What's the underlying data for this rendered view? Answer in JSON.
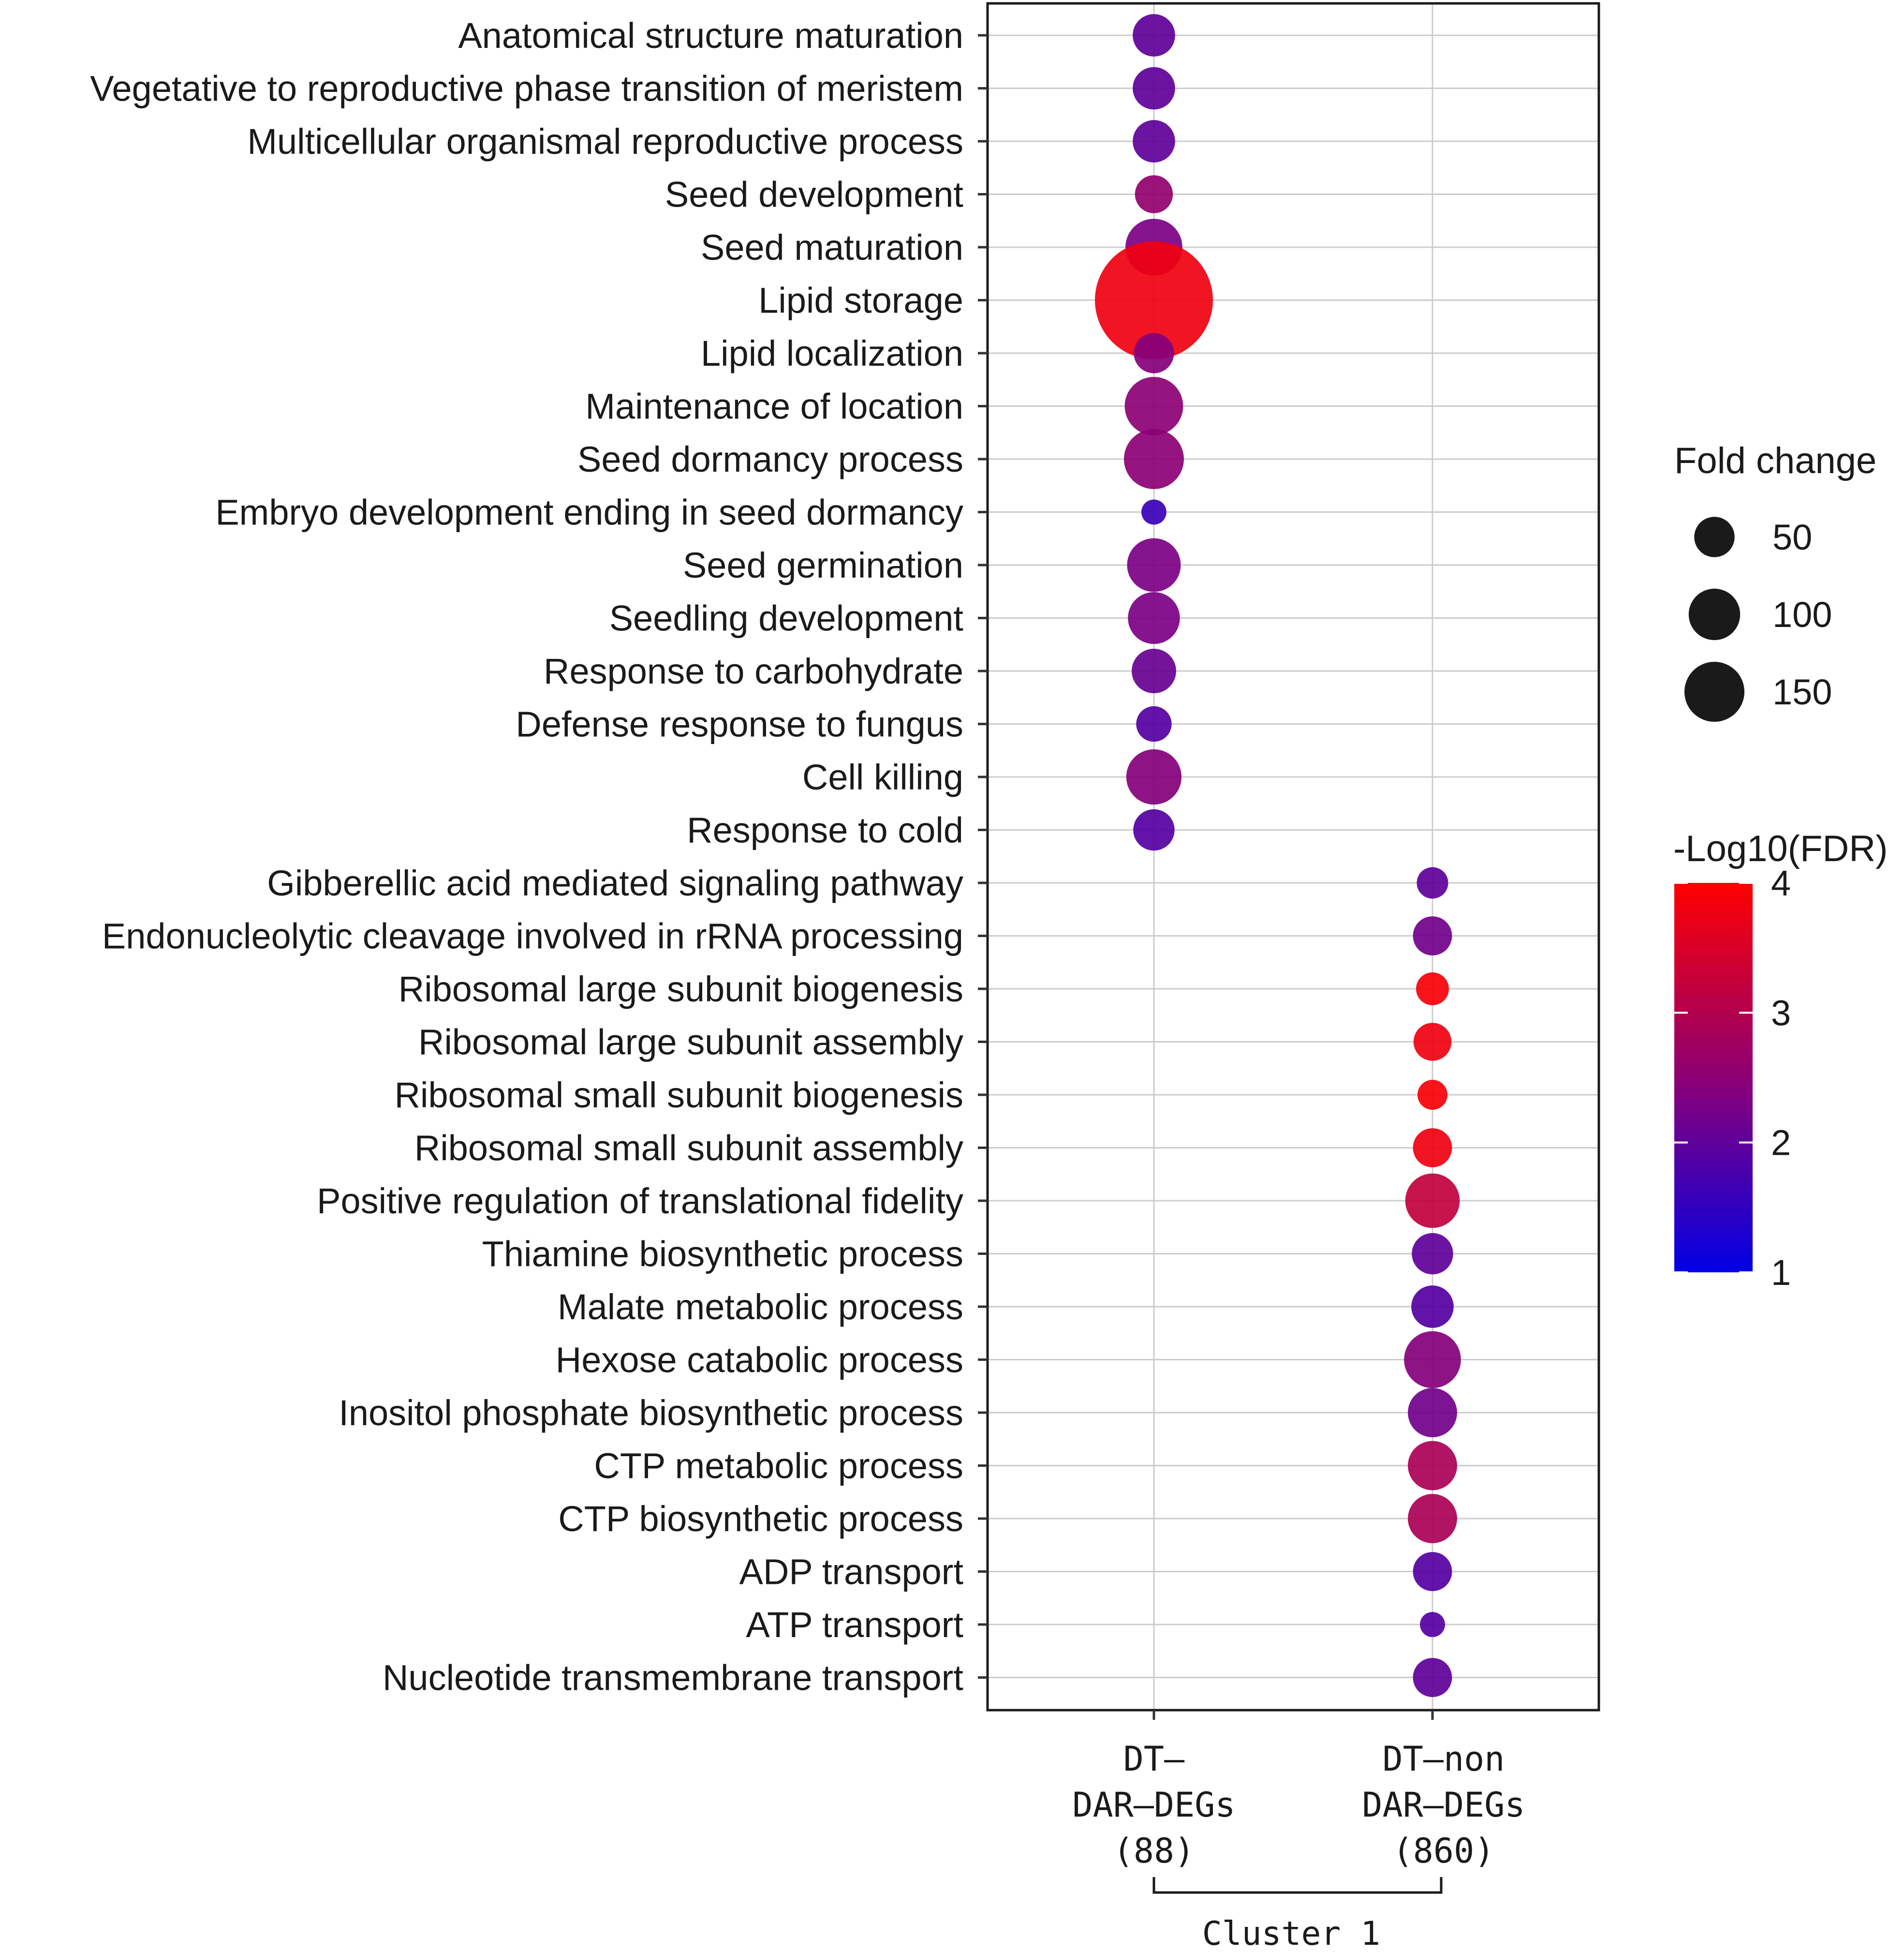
{
  "chart_data": {
    "type": "bubble",
    "columns": [
      "DT-DAR-DEGs (88)",
      "DT-non DAR-DEGs (860)"
    ],
    "column_label_lines": [
      [
        "DT–",
        "DAR–DEGs",
        "(88)"
      ],
      [
        "DT–non",
        "DAR–DEGs",
        "(860)"
      ]
    ],
    "column_group": "Cluster 1",
    "categories": [
      "Anatomical structure maturation",
      "Vegetative to reproductive phase transition of meristem",
      "Multicellular organismal reproductive process",
      "Seed development",
      "Seed maturation",
      "Lipid storage",
      "Lipid localization",
      "Maintenance of location",
      "Seed dormancy process",
      "Embryo development ending in seed dormancy",
      "Seed germination",
      "Seedling development",
      "Response to carbohydrate",
      "Defense response to fungus",
      "Cell killing",
      "Response to cold",
      "Gibberellic acid mediated signaling pathway",
      "Endonucleolytic cleavage involved in rRNA processing",
      "Ribosomal large subunit biogenesis",
      "Ribosomal large subunit assembly",
      "Ribosomal small subunit biogenesis",
      "Ribosomal small subunit assembly",
      "Positive regulation of translational fidelity",
      "Thiamine biosynthetic process",
      "Malate metabolic process",
      "Hexose catabolic process",
      "Inositol phosphate biosynthetic process",
      "CTP metabolic process",
      "CTP biosynthetic process",
      "ADP transport",
      "ATP transport",
      "Nucleotide transmembrane transport"
    ],
    "points": [
      {
        "category": "Anatomical structure maturation",
        "column": 0,
        "fold_change": 20,
        "neg_log10_fdr": 2.0
      },
      {
        "category": "Vegetative to reproductive phase transition of meristem",
        "column": 0,
        "fold_change": 20,
        "neg_log10_fdr": 2.0
      },
      {
        "category": "Multicellular organismal reproductive process",
        "column": 0,
        "fold_change": 20,
        "neg_log10_fdr": 2.0
      },
      {
        "category": "Seed development",
        "column": 0,
        "fold_change": 16,
        "neg_log10_fdr": 2.6
      },
      {
        "category": "Seed maturation",
        "column": 0,
        "fold_change": 36,
        "neg_log10_fdr": 2.3
      },
      {
        "category": "Lipid storage",
        "column": 0,
        "fold_change": 155,
        "neg_log10_fdr": 3.8
      },
      {
        "category": "Lipid localization",
        "column": 0,
        "fold_change": 18,
        "neg_log10_fdr": 2.4
      },
      {
        "category": "Maintenance of location",
        "column": 0,
        "fold_change": 38,
        "neg_log10_fdr": 2.5
      },
      {
        "category": "Seed dormancy process",
        "column": 0,
        "fold_change": 40,
        "neg_log10_fdr": 2.5
      },
      {
        "category": "Embryo development ending in seed dormancy",
        "column": 0,
        "fold_change": 7,
        "neg_log10_fdr": 1.6
      },
      {
        "category": "Seed germination",
        "column": 0,
        "fold_change": 32,
        "neg_log10_fdr": 2.3
      },
      {
        "category": "Seedling development",
        "column": 0,
        "fold_change": 30,
        "neg_log10_fdr": 2.3
      },
      {
        "category": "Response to carbohydrate",
        "column": 0,
        "fold_change": 22,
        "neg_log10_fdr": 2.1
      },
      {
        "category": "Defense response to fungus",
        "column": 0,
        "fold_change": 14,
        "neg_log10_fdr": 1.9
      },
      {
        "category": "Cell killing",
        "column": 0,
        "fold_change": 34,
        "neg_log10_fdr": 2.4
      },
      {
        "category": "Response to cold",
        "column": 0,
        "fold_change": 19,
        "neg_log10_fdr": 1.9
      },
      {
        "category": "Gibberellic acid mediated signaling pathway",
        "column": 1,
        "fold_change": 11,
        "neg_log10_fdr": 2.0
      },
      {
        "category": "Endonucleolytic cleavage involved in rRNA processing",
        "column": 1,
        "fold_change": 17,
        "neg_log10_fdr": 2.2
      },
      {
        "category": "Ribosomal large subunit biogenesis",
        "column": 1,
        "fold_change": 12,
        "neg_log10_fdr": 3.9
      },
      {
        "category": "Ribosomal large subunit assembly",
        "column": 1,
        "fold_change": 16,
        "neg_log10_fdr": 3.8
      },
      {
        "category": "Ribosomal small subunit biogenesis",
        "column": 1,
        "fold_change": 10,
        "neg_log10_fdr": 3.9
      },
      {
        "category": "Ribosomal small subunit assembly",
        "column": 1,
        "fold_change": 17,
        "neg_log10_fdr": 3.8
      },
      {
        "category": "Positive regulation of translational fidelity",
        "column": 1,
        "fold_change": 33,
        "neg_log10_fdr": 3.2
      },
      {
        "category": "Thiamine biosynthetic process",
        "column": 1,
        "fold_change": 19,
        "neg_log10_fdr": 2.0
      },
      {
        "category": "Malate metabolic process",
        "column": 1,
        "fold_change": 20,
        "neg_log10_fdr": 1.9
      },
      {
        "category": "Hexose catabolic process",
        "column": 1,
        "fold_change": 36,
        "neg_log10_fdr": 2.4
      },
      {
        "category": "Inositol phosphate biosynthetic process",
        "column": 1,
        "fold_change": 27,
        "neg_log10_fdr": 2.2
      },
      {
        "category": "CTP metabolic process",
        "column": 1,
        "fold_change": 27,
        "neg_log10_fdr": 2.9
      },
      {
        "category": "CTP biosynthetic process",
        "column": 1,
        "fold_change": 27,
        "neg_log10_fdr": 2.9
      },
      {
        "category": "ADP transport",
        "column": 1,
        "fold_change": 17,
        "neg_log10_fdr": 1.9
      },
      {
        "category": "ATP transport",
        "column": 1,
        "fold_change": 7,
        "neg_log10_fdr": 1.9
      },
      {
        "category": "Nucleotide transmembrane transport",
        "column": 1,
        "fold_change": 17,
        "neg_log10_fdr": 2.0
      }
    ],
    "size_legend": {
      "title": "Fold change",
      "values": [
        50,
        100,
        150
      ],
      "labels": [
        "50",
        "100",
        "150"
      ]
    },
    "color_legend": {
      "title": "-Log10(FDR)",
      "range": [
        1,
        4
      ],
      "ticks": [
        1,
        2,
        3,
        4
      ],
      "tick_labels": [
        "1",
        "2",
        "3",
        "4"
      ],
      "low_color": "#0000e6",
      "mid_color": "#800080",
      "high_color": "#ff0000"
    }
  }
}
